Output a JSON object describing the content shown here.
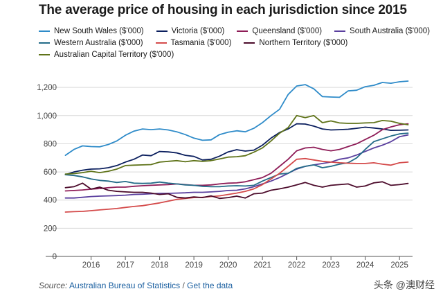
{
  "title": "The average price of housing in each jurisdiction since 2015",
  "source": {
    "label": "Source:",
    "org": "Australian Bureau of Statistics",
    "separator": "/",
    "link": "Get the data"
  },
  "watermark": "头条 @澳财经",
  "chart_data": {
    "type": "line",
    "title": "The average price of housing in each jurisdiction since 2015",
    "xlabel": "",
    "ylabel": "",
    "x": [
      2015.25,
      2015.5,
      2015.75,
      2016.0,
      2016.25,
      2016.5,
      2016.75,
      2017.0,
      2017.25,
      2017.5,
      2017.75,
      2018.0,
      2018.25,
      2018.5,
      2018.75,
      2019.0,
      2019.25,
      2019.5,
      2019.75,
      2020.0,
      2020.25,
      2020.5,
      2020.75,
      2021.0,
      2021.25,
      2021.5,
      2021.75,
      2022.0,
      2022.25,
      2022.5,
      2022.75,
      2023.0,
      2023.25,
      2023.5,
      2023.75,
      2024.0,
      2024.25,
      2024.5,
      2024.75,
      2025.0,
      2025.25
    ],
    "xticks": [
      "2016",
      "2017",
      "2018",
      "2019",
      "2020",
      "2021",
      "2022",
      "2023",
      "2024",
      "2025"
    ],
    "xtick_values": [
      2016,
      2017,
      2018,
      2019,
      2020,
      2021,
      2022,
      2023,
      2024,
      2025
    ],
    "xlim": [
      2015.2,
      2025.3
    ],
    "ylim": [
      0,
      1250
    ],
    "yticks": [
      0,
      200,
      400,
      600,
      800,
      "1,000",
      "1,200"
    ],
    "ytick_values": [
      0,
      200,
      400,
      600,
      800,
      1000,
      1200
    ],
    "grid": true,
    "legend_position": "top",
    "series": [
      {
        "name": "New South Wales ($'000)",
        "color": "#2e8bc9",
        "values": [
          718,
          760,
          785,
          780,
          778,
          795,
          820,
          860,
          890,
          905,
          900,
          905,
          898,
          885,
          865,
          840,
          825,
          828,
          865,
          882,
          892,
          885,
          910,
          950,
          1000,
          1045,
          1150,
          1210,
          1220,
          1190,
          1135,
          1132,
          1130,
          1175,
          1180,
          1205,
          1215,
          1235,
          1230,
          1240,
          1245
        ]
      },
      {
        "name": "Victoria ($'000)",
        "color": "#0b1f5e",
        "values": [
          580,
          600,
          612,
          620,
          622,
          630,
          645,
          670,
          690,
          720,
          715,
          745,
          742,
          735,
          718,
          710,
          685,
          690,
          712,
          742,
          758,
          748,
          755,
          790,
          840,
          880,
          905,
          942,
          940,
          925,
          905,
          898,
          900,
          903,
          910,
          918,
          912,
          905,
          895,
          896,
          898
        ]
      },
      {
        "name": "Queensland ($'000)",
        "color": "#8e1c57",
        "values": [
          465,
          468,
          472,
          478,
          482,
          488,
          492,
          492,
          498,
          502,
          505,
          508,
          510,
          515,
          510,
          505,
          505,
          508,
          515,
          520,
          522,
          530,
          545,
          560,
          590,
          640,
          690,
          750,
          770,
          775,
          760,
          750,
          760,
          780,
          800,
          830,
          860,
          900,
          920,
          935,
          942
        ]
      },
      {
        "name": "South Australia ($'000)",
        "color": "#5a3f9e",
        "values": [
          415,
          415,
          420,
          425,
          428,
          430,
          432,
          435,
          440,
          442,
          445,
          448,
          448,
          450,
          452,
          455,
          455,
          458,
          462,
          468,
          470,
          480,
          495,
          515,
          535,
          560,
          590,
          620,
          640,
          650,
          660,
          670,
          690,
          700,
          720,
          745,
          770,
          790,
          815,
          850,
          862
        ]
      },
      {
        "name": "Western Australia ($'000)",
        "color": "#236b88",
        "values": [
          580,
          575,
          565,
          550,
          540,
          535,
          525,
          532,
          520,
          518,
          520,
          528,
          520,
          515,
          508,
          505,
          498,
          495,
          495,
          500,
          502,
          500,
          505,
          535,
          560,
          585,
          590,
          625,
          640,
          650,
          630,
          640,
          655,
          665,
          700,
          760,
          815,
          835,
          855,
          870,
          875
        ]
      },
      {
        "name": "Tasmania ($'000)",
        "color": "#d44a4a",
        "values": [
          315,
          318,
          320,
          325,
          330,
          335,
          340,
          348,
          355,
          360,
          370,
          380,
          392,
          405,
          412,
          418,
          420,
          425,
          430,
          440,
          450,
          462,
          480,
          510,
          550,
          590,
          640,
          690,
          695,
          685,
          675,
          670,
          665,
          662,
          660,
          660,
          665,
          655,
          648,
          665,
          670
        ]
      },
      {
        "name": "Northern Territory ($'000)",
        "color": "#4b0a2a",
        "values": [
          488,
          495,
          520,
          478,
          492,
          470,
          462,
          458,
          455,
          455,
          450,
          440,
          445,
          420,
          415,
          422,
          418,
          430,
          412,
          418,
          428,
          415,
          445,
          450,
          470,
          480,
          492,
          508,
          525,
          505,
          492,
          505,
          510,
          515,
          492,
          500,
          522,
          530,
          505,
          510,
          518
        ]
      },
      {
        "name": "Australian Capital Territory ($'000)",
        "color": "#5f7319",
        "values": [
          585,
          588,
          595,
          605,
          595,
          605,
          620,
          645,
          648,
          650,
          652,
          670,
          675,
          680,
          672,
          680,
          675,
          680,
          692,
          705,
          708,
          715,
          740,
          770,
          820,
          875,
          915,
          1000,
          985,
          1000,
          950,
          962,
          948,
          945,
          945,
          948,
          950,
          965,
          960,
          945,
          935
        ]
      }
    ]
  }
}
